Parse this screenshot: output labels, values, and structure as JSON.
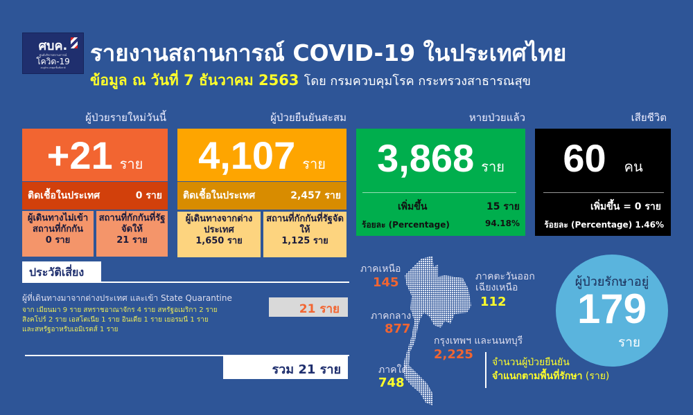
{
  "logo": {
    "text": "ศบค.",
    "sub": "ศูนย์บริหารสถานการณ์",
    "name": "โควิด-19",
    "tagline": "#อยู่บ้าน #หยุดเชื้อเพื่อชาติ"
  },
  "header": {
    "title": "รายงานสถานการณ์ COVID-19 ในประเทศไทย",
    "date": "ข้อมูล ณ วันที่ 7 ธันวาคม 2563",
    "source": "โดย กรมควบคุมโรค กระทรวงสาธารณสุข"
  },
  "new_cases": {
    "label": "ผู้ป่วยรายใหม่วันนี้",
    "value": "+21",
    "unit": "ราย",
    "local_label": "ติดเชื้อในประเทศ",
    "local_value": "0 ราย",
    "cell1_label": "ผู้เดินทางไม่เข้าสถานที่กักกัน",
    "cell1_value": "0 ราย",
    "cell2_label": "สถานที่กักกันที่รัฐจัดให้",
    "cell2_value": "21 ราย"
  },
  "cumulative": {
    "label": "ผู้ป่วยยืนยันสะสม",
    "value": "4,107",
    "unit": "ราย",
    "local_label": "ติดเชื้อในประเทศ",
    "local_value": "2,457 ราย",
    "cell1_label": "ผู้เดินทางจากต่างประเทศ",
    "cell1_value": "1,650 ราย",
    "cell2_label": "สถานที่กักกันที่รัฐจัดให้",
    "cell2_value": "1,125 ราย"
  },
  "recovered": {
    "label": "หายป่วยแล้ว",
    "value": "3,868",
    "unit": "ราย",
    "increase_label": "เพิ่มขึ้น",
    "increase_value": "15 ราย",
    "pct_label": "ร้อยละ (Percentage)",
    "pct_value": "94.18%"
  },
  "deaths": {
    "label": "เสียชีวิต",
    "value": "60",
    "unit": "คน",
    "increase": "เพิ่มขึ้น = 0 ราย",
    "pct": "ร้อยละ (Percentage) 1.46%"
  },
  "risk": {
    "title": "ประวัติเสี่ยง",
    "line": "ผู้ที่เดินทางมาจากต่างประเทศ และเข้า State Quarantine",
    "count": "21 ราย",
    "details": [
      "จาก เมียนมา 9 ราย สหราชอาณาจักร 4 ราย สหรัฐอเมริกา 2 ราย",
      "สิงคโปร์ 2 ราย เอสโตเนีย 1 ราย อินเดีย 1 ราย เยอรมนี 1 ราย",
      "และสหรัฐอาหรับเอมิเรตส์ 1 ราย"
    ],
    "total": "รวม 21 ราย"
  },
  "regions": {
    "north": {
      "label": "ภาคเหนือ",
      "value": "145"
    },
    "central": {
      "label": "ภาคกลาง",
      "value": "877"
    },
    "south": {
      "label": "ภาคใต้",
      "value": "748"
    },
    "northeast": {
      "label1": "ภาคตะวันออก",
      "label2": "เฉียงเหนือ",
      "value": "112"
    },
    "bangkok": {
      "label": "กรุงเทพฯ และนนทบุรี",
      "value": "2,225"
    },
    "caption1": "จำนวนผู้ป่วยยืนยัน",
    "caption2": "จำแนกตามพื้นที่รักษา",
    "caption_unit": "(ราย)"
  },
  "treating": {
    "label": "ผู้ป่วยรักษาอยู่",
    "value": "179",
    "unit": "ราย"
  },
  "colors": {
    "background": "#2e5597",
    "new": "#f26531",
    "cumulative": "#fea500",
    "recovered": "#00ae4d",
    "deaths": "#000000",
    "circle": "#5ab4dd",
    "highlight": "#ffff2a"
  }
}
